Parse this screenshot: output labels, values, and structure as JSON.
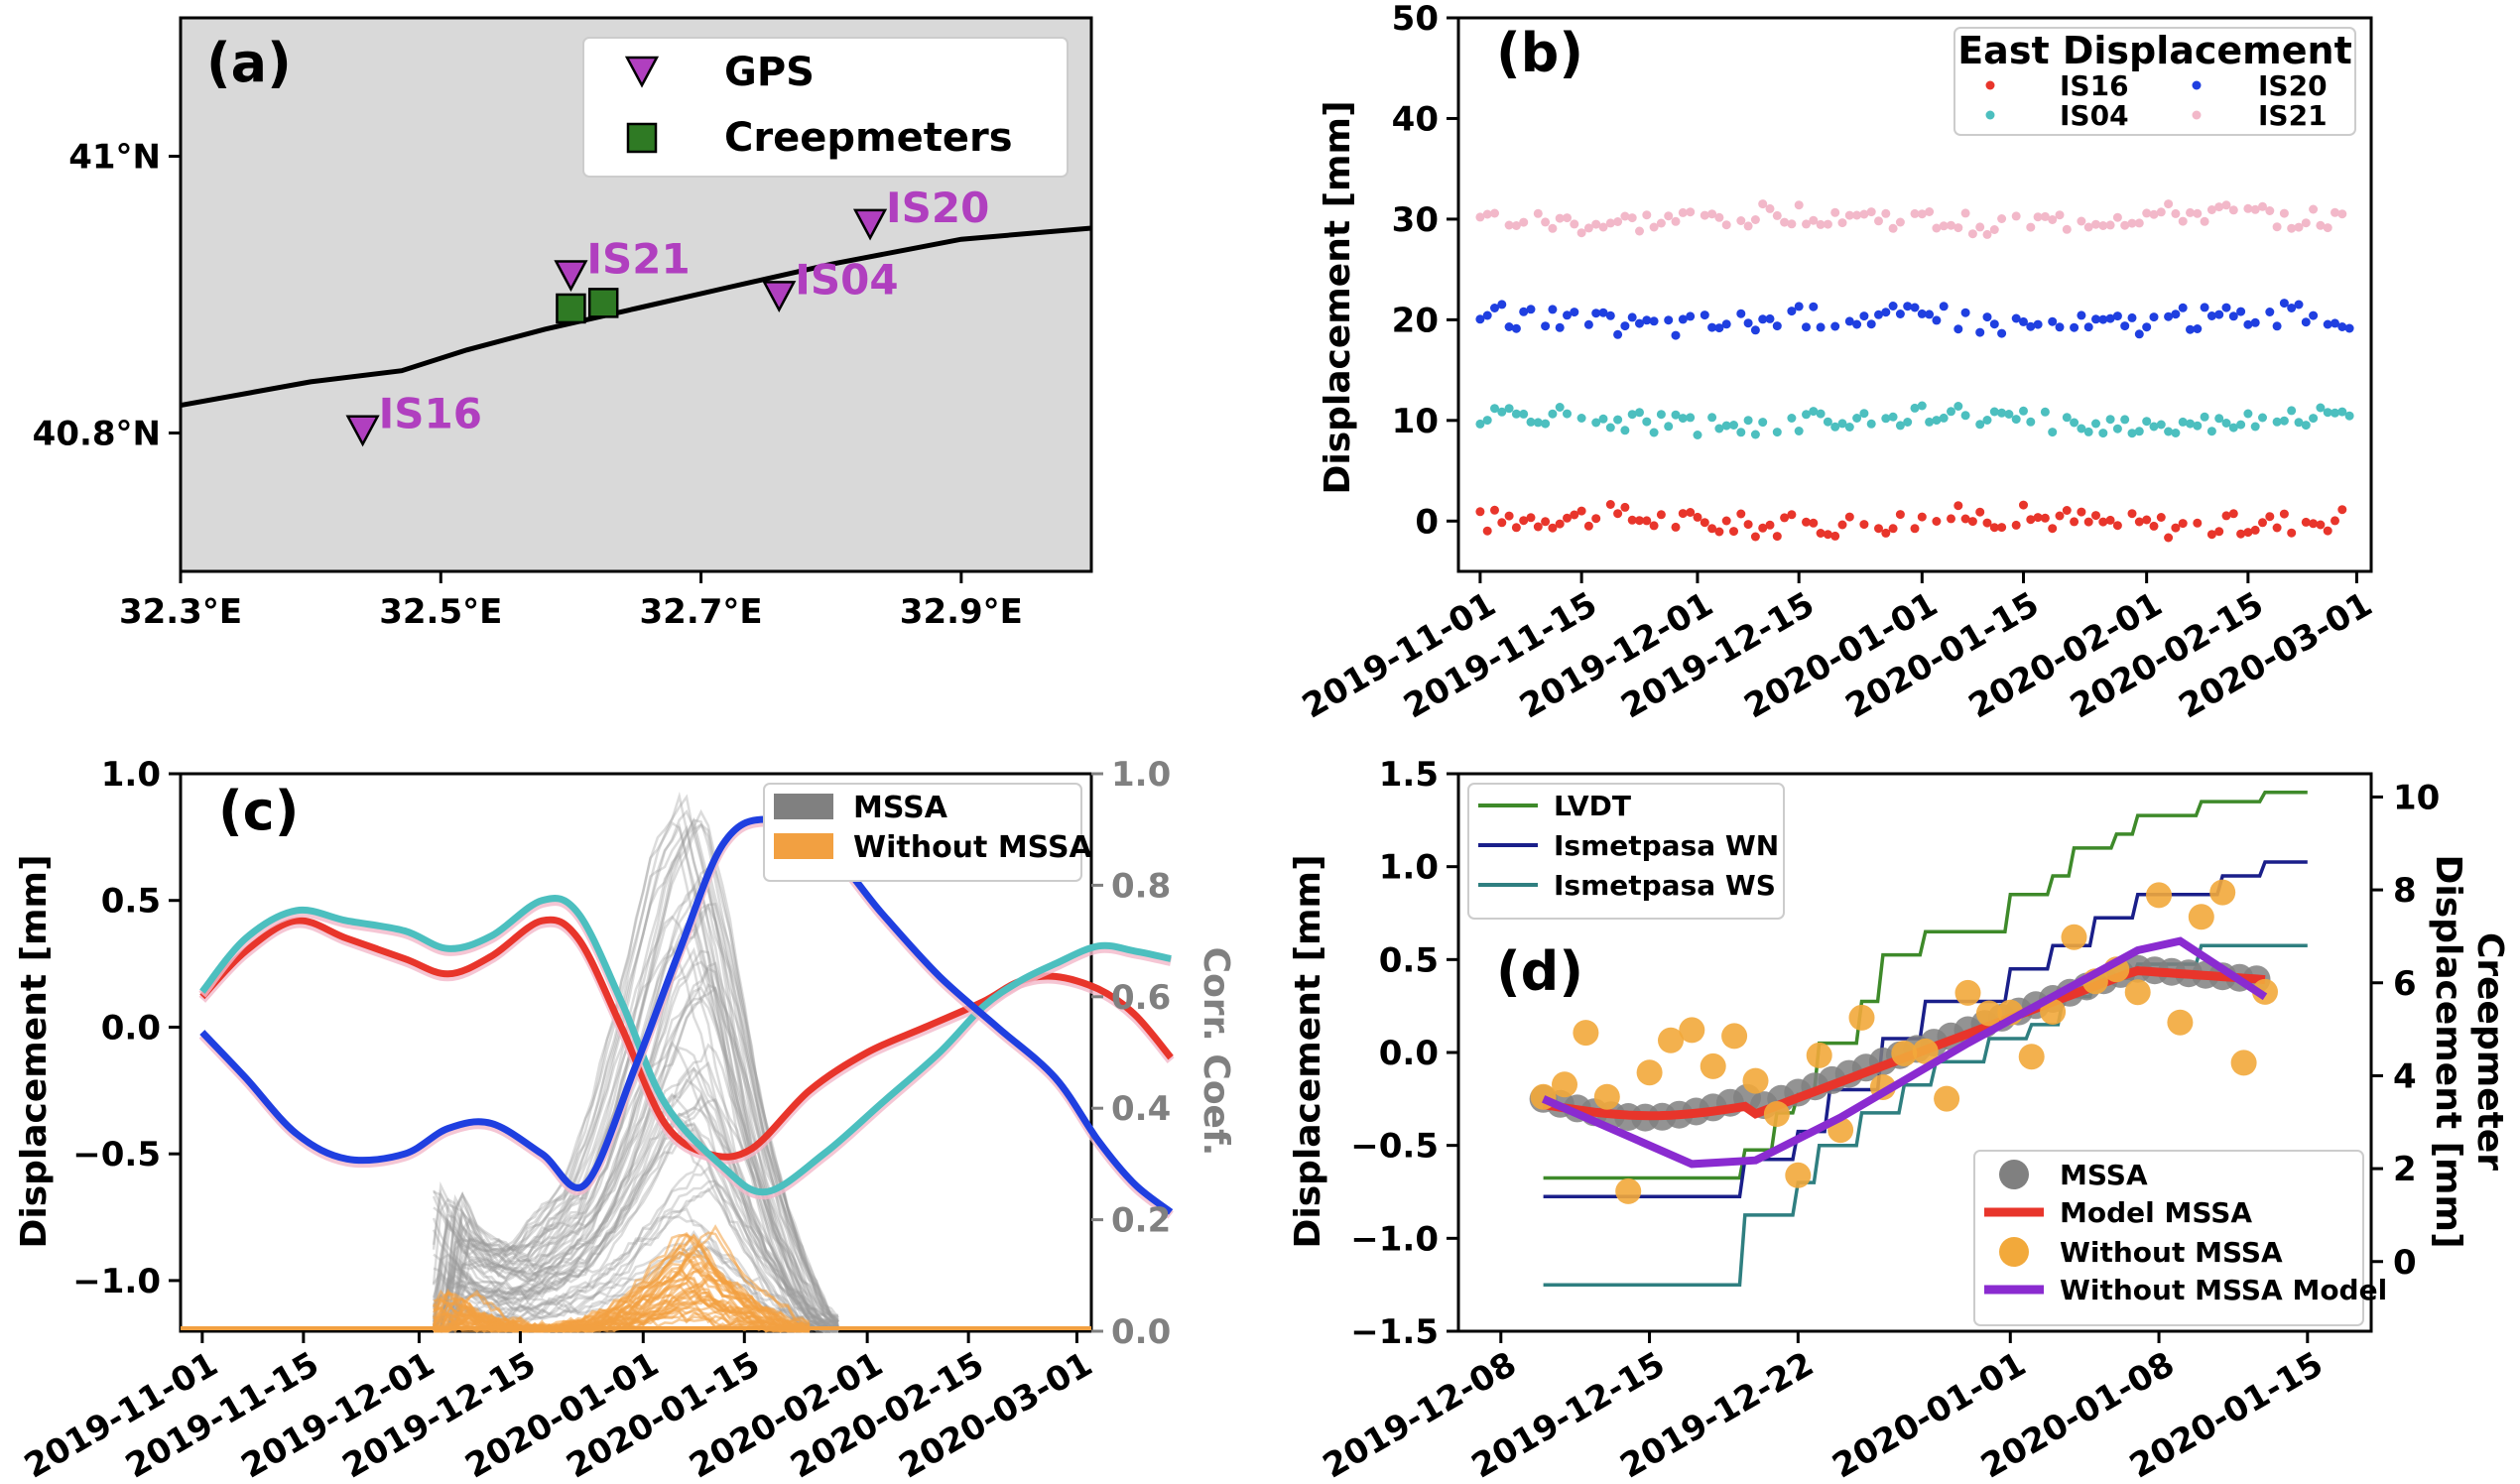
{
  "chart_data": [
    {
      "panel": "(a)",
      "type": "scatter",
      "xlim": [
        32.3,
        33.0
      ],
      "ylim": [
        40.7,
        41.1
      ],
      "x_ticks": [
        32.3,
        32.5,
        32.7,
        32.9
      ],
      "x_tick_labels": [
        "32.3°E",
        "32.5°E",
        "32.7°E",
        "32.9°E"
      ],
      "y_ticks": [
        40.8,
        41.0
      ],
      "y_tick_labels": [
        "40.8°N",
        "41°N"
      ],
      "background": "#d9d9d9",
      "legend": {
        "placement": "top-right",
        "entries": [
          {
            "name": "GPS",
            "marker": "triangle-down",
            "color": "#b03fbf"
          },
          {
            "name": "Creepmeters",
            "marker": "square",
            "color": "#2f7a24"
          }
        ]
      },
      "gps_stations": [
        {
          "name": "IS16",
          "lon": 32.44,
          "lat": 40.802
        },
        {
          "name": "IS21",
          "lon": 32.6,
          "lat": 40.914
        },
        {
          "name": "IS04",
          "lon": 32.76,
          "lat": 40.899
        },
        {
          "name": "IS20",
          "lon": 32.83,
          "lat": 40.951
        }
      ],
      "creepmeters": [
        {
          "lon": 32.6,
          "lat": 40.89
        },
        {
          "lon": 32.625,
          "lat": 40.894
        }
      ],
      "fault_trace": [
        [
          32.3,
          40.82
        ],
        [
          32.4,
          40.837
        ],
        [
          32.47,
          40.845
        ],
        [
          32.52,
          40.86
        ],
        [
          32.58,
          40.875
        ],
        [
          32.65,
          40.89
        ],
        [
          32.72,
          40.905
        ],
        [
          32.8,
          40.922
        ],
        [
          32.9,
          40.94
        ],
        [
          33.0,
          40.948
        ]
      ]
    },
    {
      "panel": "(b)",
      "type": "scatter",
      "ylabel": "Displacement [mm]",
      "ylim": [
        -5,
        50
      ],
      "y_ticks": [
        0,
        10,
        20,
        30,
        40,
        50
      ],
      "xlim": [
        "2019-10-29",
        "2020-03-03"
      ],
      "x_tick_labels": [
        "2019-11-01",
        "2019-11-15",
        "2019-12-01",
        "2019-12-15",
        "2020-01-01",
        "2020-01-15",
        "2020-02-01",
        "2020-02-15",
        "2020-03-01"
      ],
      "legend": {
        "title": "East Displacement",
        "placement": "top-right"
      },
      "start_date": "2019-11-01",
      "series": [
        {
          "name": "IS16",
          "color": "#e8352b",
          "mean": 0,
          "amp": 1.2
        },
        {
          "name": "IS04",
          "color": "#4cbfbf",
          "mean": 10,
          "amp": 1.0
        },
        {
          "name": "IS20",
          "color": "#1f3fe0",
          "mean": 20,
          "amp": 1.2
        },
        {
          "name": "IS21",
          "color": "#f2b8c9",
          "mean": 30,
          "amp": 1.1
        }
      ]
    },
    {
      "panel": "(c)",
      "type": "line",
      "ylabel": "Displacement [mm]",
      "ylabel_right": "Corr. Coef.",
      "ylim": [
        -1.2,
        1.0
      ],
      "y_ticks": [
        -1.0,
        -0.5,
        0.0,
        0.5,
        1.0
      ],
      "y_tick_labels": [
        "−1.0",
        "−0.5",
        "0.0",
        "0.5",
        "1.0"
      ],
      "ylim_right": [
        0,
        1
      ],
      "y_ticks_right": [
        "0.0",
        "0.2",
        "0.4",
        "0.6",
        "0.8",
        "1.0"
      ],
      "xlim": [
        "2019-10-29",
        "2020-03-03"
      ],
      "x_tick_labels": [
        "2019-11-01",
        "2019-11-15",
        "2019-12-01",
        "2019-12-15",
        "2020-01-01",
        "2020-01-15",
        "2020-02-01",
        "2020-02-15",
        "2020-03-01"
      ],
      "legend": {
        "placement": "top-right",
        "entries": [
          {
            "name": "MSSA",
            "color": "#808080"
          },
          {
            "name": "Without MSSA",
            "color": "#f2a041"
          }
        ]
      },
      "series": [
        {
          "color": "#e8352b",
          "points": [
            [
              0,
              0.12
            ],
            [
              6,
              0.3
            ],
            [
              13,
              0.42
            ],
            [
              20,
              0.35
            ],
            [
              28,
              0.27
            ],
            [
              34,
              0.21
            ],
            [
              40,
              0.28
            ],
            [
              47,
              0.42
            ],
            [
              52,
              0.35
            ],
            [
              58,
              0.0
            ],
            [
              64,
              -0.38
            ],
            [
              70,
              -0.5
            ],
            [
              76,
              -0.48
            ],
            [
              84,
              -0.25
            ],
            [
              92,
              -0.1
            ],
            [
              100,
              0.0
            ],
            [
              108,
              0.1
            ],
            [
              113,
              0.18
            ],
            [
              118,
              0.2
            ],
            [
              124,
              0.15
            ],
            [
              129,
              0.05
            ],
            [
              134,
              -0.12
            ]
          ]
        },
        {
          "color": "#4cbfbf",
          "points": [
            [
              0,
              0.14
            ],
            [
              6,
              0.35
            ],
            [
              13,
              0.46
            ],
            [
              20,
              0.42
            ],
            [
              28,
              0.38
            ],
            [
              34,
              0.31
            ],
            [
              40,
              0.36
            ],
            [
              47,
              0.5
            ],
            [
              52,
              0.45
            ],
            [
              58,
              0.1
            ],
            [
              64,
              -0.3
            ],
            [
              72,
              -0.55
            ],
            [
              78,
              -0.65
            ],
            [
              86,
              -0.5
            ],
            [
              94,
              -0.3
            ],
            [
              102,
              -0.1
            ],
            [
              108,
              0.08
            ],
            [
              113,
              0.18
            ],
            [
              118,
              0.25
            ],
            [
              124,
              0.32
            ],
            [
              129,
              0.3
            ],
            [
              134,
              0.27
            ]
          ]
        },
        {
          "color": "#1f3fe0",
          "points": [
            [
              0,
              -0.02
            ],
            [
              6,
              -0.2
            ],
            [
              13,
              -0.42
            ],
            [
              20,
              -0.52
            ],
            [
              28,
              -0.5
            ],
            [
              34,
              -0.4
            ],
            [
              40,
              -0.38
            ],
            [
              47,
              -0.5
            ],
            [
              53,
              -0.62
            ],
            [
              60,
              -0.15
            ],
            [
              66,
              0.3
            ],
            [
              72,
              0.72
            ],
            [
              78,
              0.82
            ],
            [
              86,
              0.72
            ],
            [
              94,
              0.45
            ],
            [
              102,
              0.2
            ],
            [
              110,
              0.0
            ],
            [
              118,
              -0.2
            ],
            [
              124,
              -0.45
            ],
            [
              129,
              -0.62
            ],
            [
              134,
              -0.73
            ]
          ]
        }
      ],
      "corr_mssa_envelope": [
        [
          32,
          0.0
        ],
        [
          34,
          0.25
        ],
        [
          38,
          0.16
        ],
        [
          44,
          0.14
        ],
        [
          48,
          0.2
        ],
        [
          52,
          0.25
        ],
        [
          56,
          0.4
        ],
        [
          60,
          0.6
        ],
        [
          64,
          0.82
        ],
        [
          68,
          0.92
        ],
        [
          72,
          0.7
        ],
        [
          76,
          0.4
        ],
        [
          80,
          0.2
        ],
        [
          84,
          0.05
        ],
        [
          88,
          0.0
        ]
      ],
      "corr_nomssa_envelope": [
        [
          32,
          0.0
        ],
        [
          34,
          0.07
        ],
        [
          40,
          0.02
        ],
        [
          48,
          0.0
        ],
        [
          54,
          0.02
        ],
        [
          60,
          0.06
        ],
        [
          64,
          0.12
        ],
        [
          68,
          0.18
        ],
        [
          72,
          0.1
        ],
        [
          76,
          0.06
        ],
        [
          80,
          0.02
        ],
        [
          84,
          0.0
        ]
      ]
    },
    {
      "panel": "(d)",
      "type": "line",
      "ylabel": "Displacement [mm]",
      "ylabel_right_line1": "Creepmeter",
      "ylabel_right_line2": "Displacement [mm]",
      "ylim": [
        -1.5,
        1.5
      ],
      "y_ticks": [
        -1.5,
        -1.0,
        -0.5,
        0.0,
        0.5,
        1.0,
        1.5
      ],
      "y_tick_labels": [
        "−1.5",
        "−1.0",
        "−0.5",
        "0.0",
        "0.5",
        "1.0",
        "1.5"
      ],
      "ylim_right": [
        -1.5,
        10.5
      ],
      "y_ticks_right": [
        0,
        2,
        4,
        6,
        8,
        10
      ],
      "xlim": [
        "2019-12-06",
        "2020-01-18"
      ],
      "x_tick_labels": [
        "2019-12-08",
        "2019-12-15",
        "2019-12-22",
        "2020-01-01",
        "2020-01-08",
        "2020-01-15"
      ],
      "legend_top": {
        "placement": "top-left",
        "entries": [
          {
            "name": "LVDT",
            "color": "#3e8a2a"
          },
          {
            "name": "Ismetpasa WN",
            "color": "#1a1f8a"
          },
          {
            "name": "Ismetpasa WS",
            "color": "#2f7f80"
          }
        ]
      },
      "legend_bottom": {
        "placement": "lower-right",
        "entries": [
          {
            "name": "MSSA",
            "color": "#808080"
          },
          {
            "name": "Model MSSA",
            "color": "#e8352b"
          },
          {
            "name": "Without MSSA",
            "color": "#f2a93b"
          },
          {
            "name": "Without MSSA Model",
            "color": "#8a2bd0"
          }
        ]
      },
      "start_date": "2019-12-10"
    }
  ]
}
